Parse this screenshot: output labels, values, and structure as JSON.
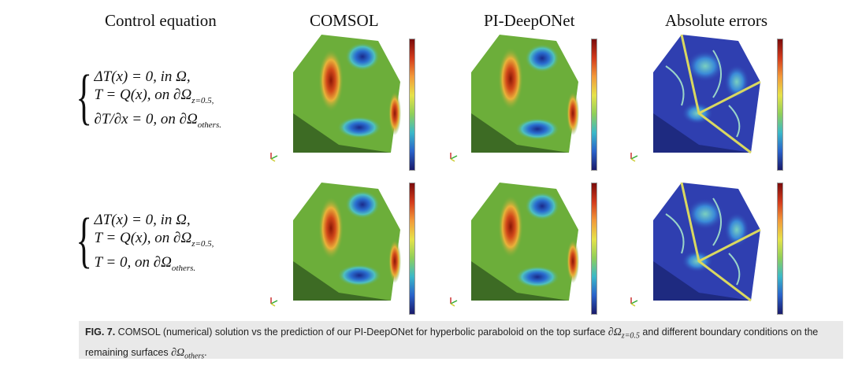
{
  "headers": {
    "control": "Control equation",
    "comsol": "COMSOL",
    "deeponet": "PI-DeepONet",
    "errors": "Absolute errors"
  },
  "rows": [
    {
      "equations": [
        "ΔT(x) = 0,  in Ω,",
        "T = Q(x),  on ∂Ω",
        "∂T/∂x = 0,  on ∂Ω"
      ],
      "subs": [
        "",
        "z=0.5,",
        "others."
      ]
    },
    {
      "equations": [
        "ΔT(x) = 0,  in Ω,",
        "T = Q(x),  on ∂Ω",
        "T = 0,  on ∂Ω"
      ],
      "subs": [
        "",
        "z=0.5,",
        "others."
      ]
    }
  ],
  "caption": {
    "label": "FIG. 7.",
    "text_a": " COMSOL (numerical) solution vs the prediction of our PI-DeepONet for hyperbolic paraboloid on the top surface ",
    "math_a": "∂Ω",
    "sub_a": "z=0.5",
    "text_b": " and different boundary conditions on the remaining surfaces ",
    "math_b": "∂Ω",
    "sub_b": "others",
    "text_c": "."
  },
  "colors": {
    "field_green": "#6cae3a",
    "field_dark_green": "#3d6b24",
    "hot": "#b22a12",
    "cold": "#1f2a88",
    "error_bg": "#2f3fb0"
  }
}
